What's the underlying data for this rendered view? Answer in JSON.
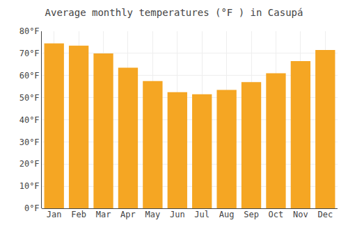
{
  "chart_data": {
    "type": "bar",
    "title": "Average monthly temperatures (°F ) in Casupá",
    "categories": [
      "Jan",
      "Feb",
      "Mar",
      "Apr",
      "May",
      "Jun",
      "Jul",
      "Aug",
      "Sep",
      "Oct",
      "Nov",
      "Dec"
    ],
    "values": [
      74.5,
      73.5,
      70.0,
      63.5,
      57.5,
      52.5,
      51.5,
      53.5,
      57.0,
      61.0,
      66.5,
      71.5
    ],
    "color": "#F5A623",
    "ylim": [
      0,
      80
    ],
    "yticks": [
      {
        "value": 0,
        "label": "0°F"
      },
      {
        "value": 10,
        "label": "10°F"
      },
      {
        "value": 20,
        "label": "20°F"
      },
      {
        "value": 30,
        "label": "30°F"
      },
      {
        "value": 40,
        "label": "40°F"
      },
      {
        "value": 50,
        "label": "50°F"
      },
      {
        "value": 60,
        "label": "60°F"
      },
      {
        "value": 70,
        "label": "70°F"
      },
      {
        "value": 80,
        "label": "80°F"
      }
    ],
    "grid": true
  }
}
